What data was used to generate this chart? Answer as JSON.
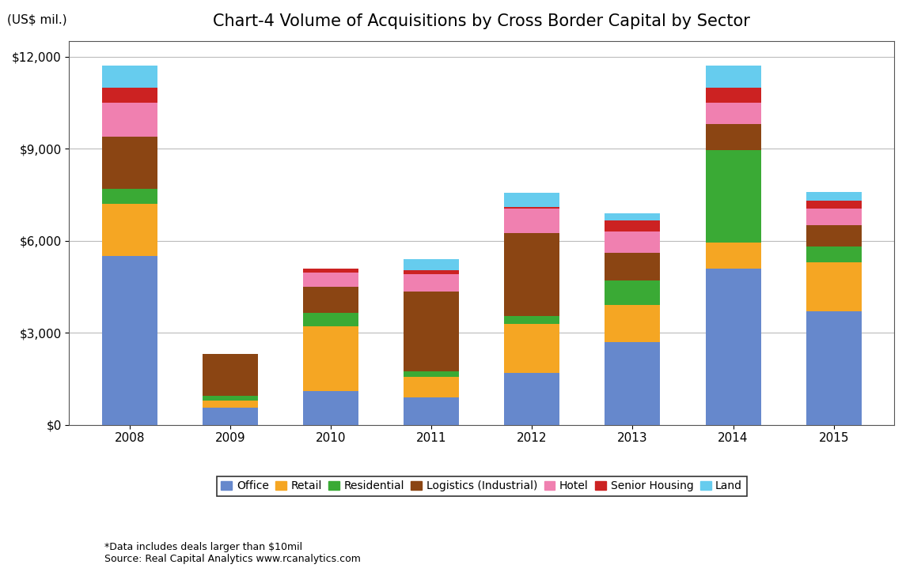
{
  "title": "Chart-4 Volume of Acquisitions by Cross Border Capital by Sector",
  "ylabel": "(US$ mil.)",
  "years": [
    "2008",
    "2009",
    "2010",
    "2011",
    "2012",
    "2013",
    "2014",
    "2015"
  ],
  "sectors": [
    "Office",
    "Retail",
    "Residential",
    "Logistics (Industrial)",
    "Hotel",
    "Senior Housing",
    "Land"
  ],
  "colors": [
    "#6688cc",
    "#f5a623",
    "#3aaa35",
    "#8b4513",
    "#f080b0",
    "#cc2222",
    "#66ccee"
  ],
  "data": {
    "Office": [
      5500,
      550,
      1100,
      900,
      1700,
      2700,
      5100,
      3700
    ],
    "Retail": [
      1700,
      250,
      2100,
      650,
      1600,
      1200,
      850,
      1600
    ],
    "Residential": [
      500,
      150,
      450,
      200,
      250,
      800,
      3000,
      500
    ],
    "Logistics (Industrial)": [
      1700,
      1350,
      850,
      2600,
      2700,
      900,
      850,
      700
    ],
    "Hotel": [
      1100,
      0,
      450,
      550,
      800,
      700,
      700,
      550
    ],
    "Senior Housing": [
      500,
      0,
      150,
      150,
      50,
      350,
      500,
      250
    ],
    "Land": [
      700,
      0,
      0,
      350,
      450,
      250,
      700,
      300
    ]
  },
  "ylim": [
    0,
    12500
  ],
  "yticks": [
    0,
    3000,
    6000,
    9000,
    12000
  ],
  "ytick_labels": [
    "$0",
    "$3,000",
    "$6,000",
    "$9,000",
    "$12,000"
  ],
  "footnote1": "*Data includes deals larger than $10mil",
  "footnote2": "Source: Real Capital Analytics www.rcanalytics.com",
  "background_color": "#ffffff",
  "grid_color": "#bbbbbb",
  "title_fontsize": 15,
  "axis_label_fontsize": 11,
  "tick_fontsize": 11,
  "legend_fontsize": 10,
  "bar_width": 0.55
}
